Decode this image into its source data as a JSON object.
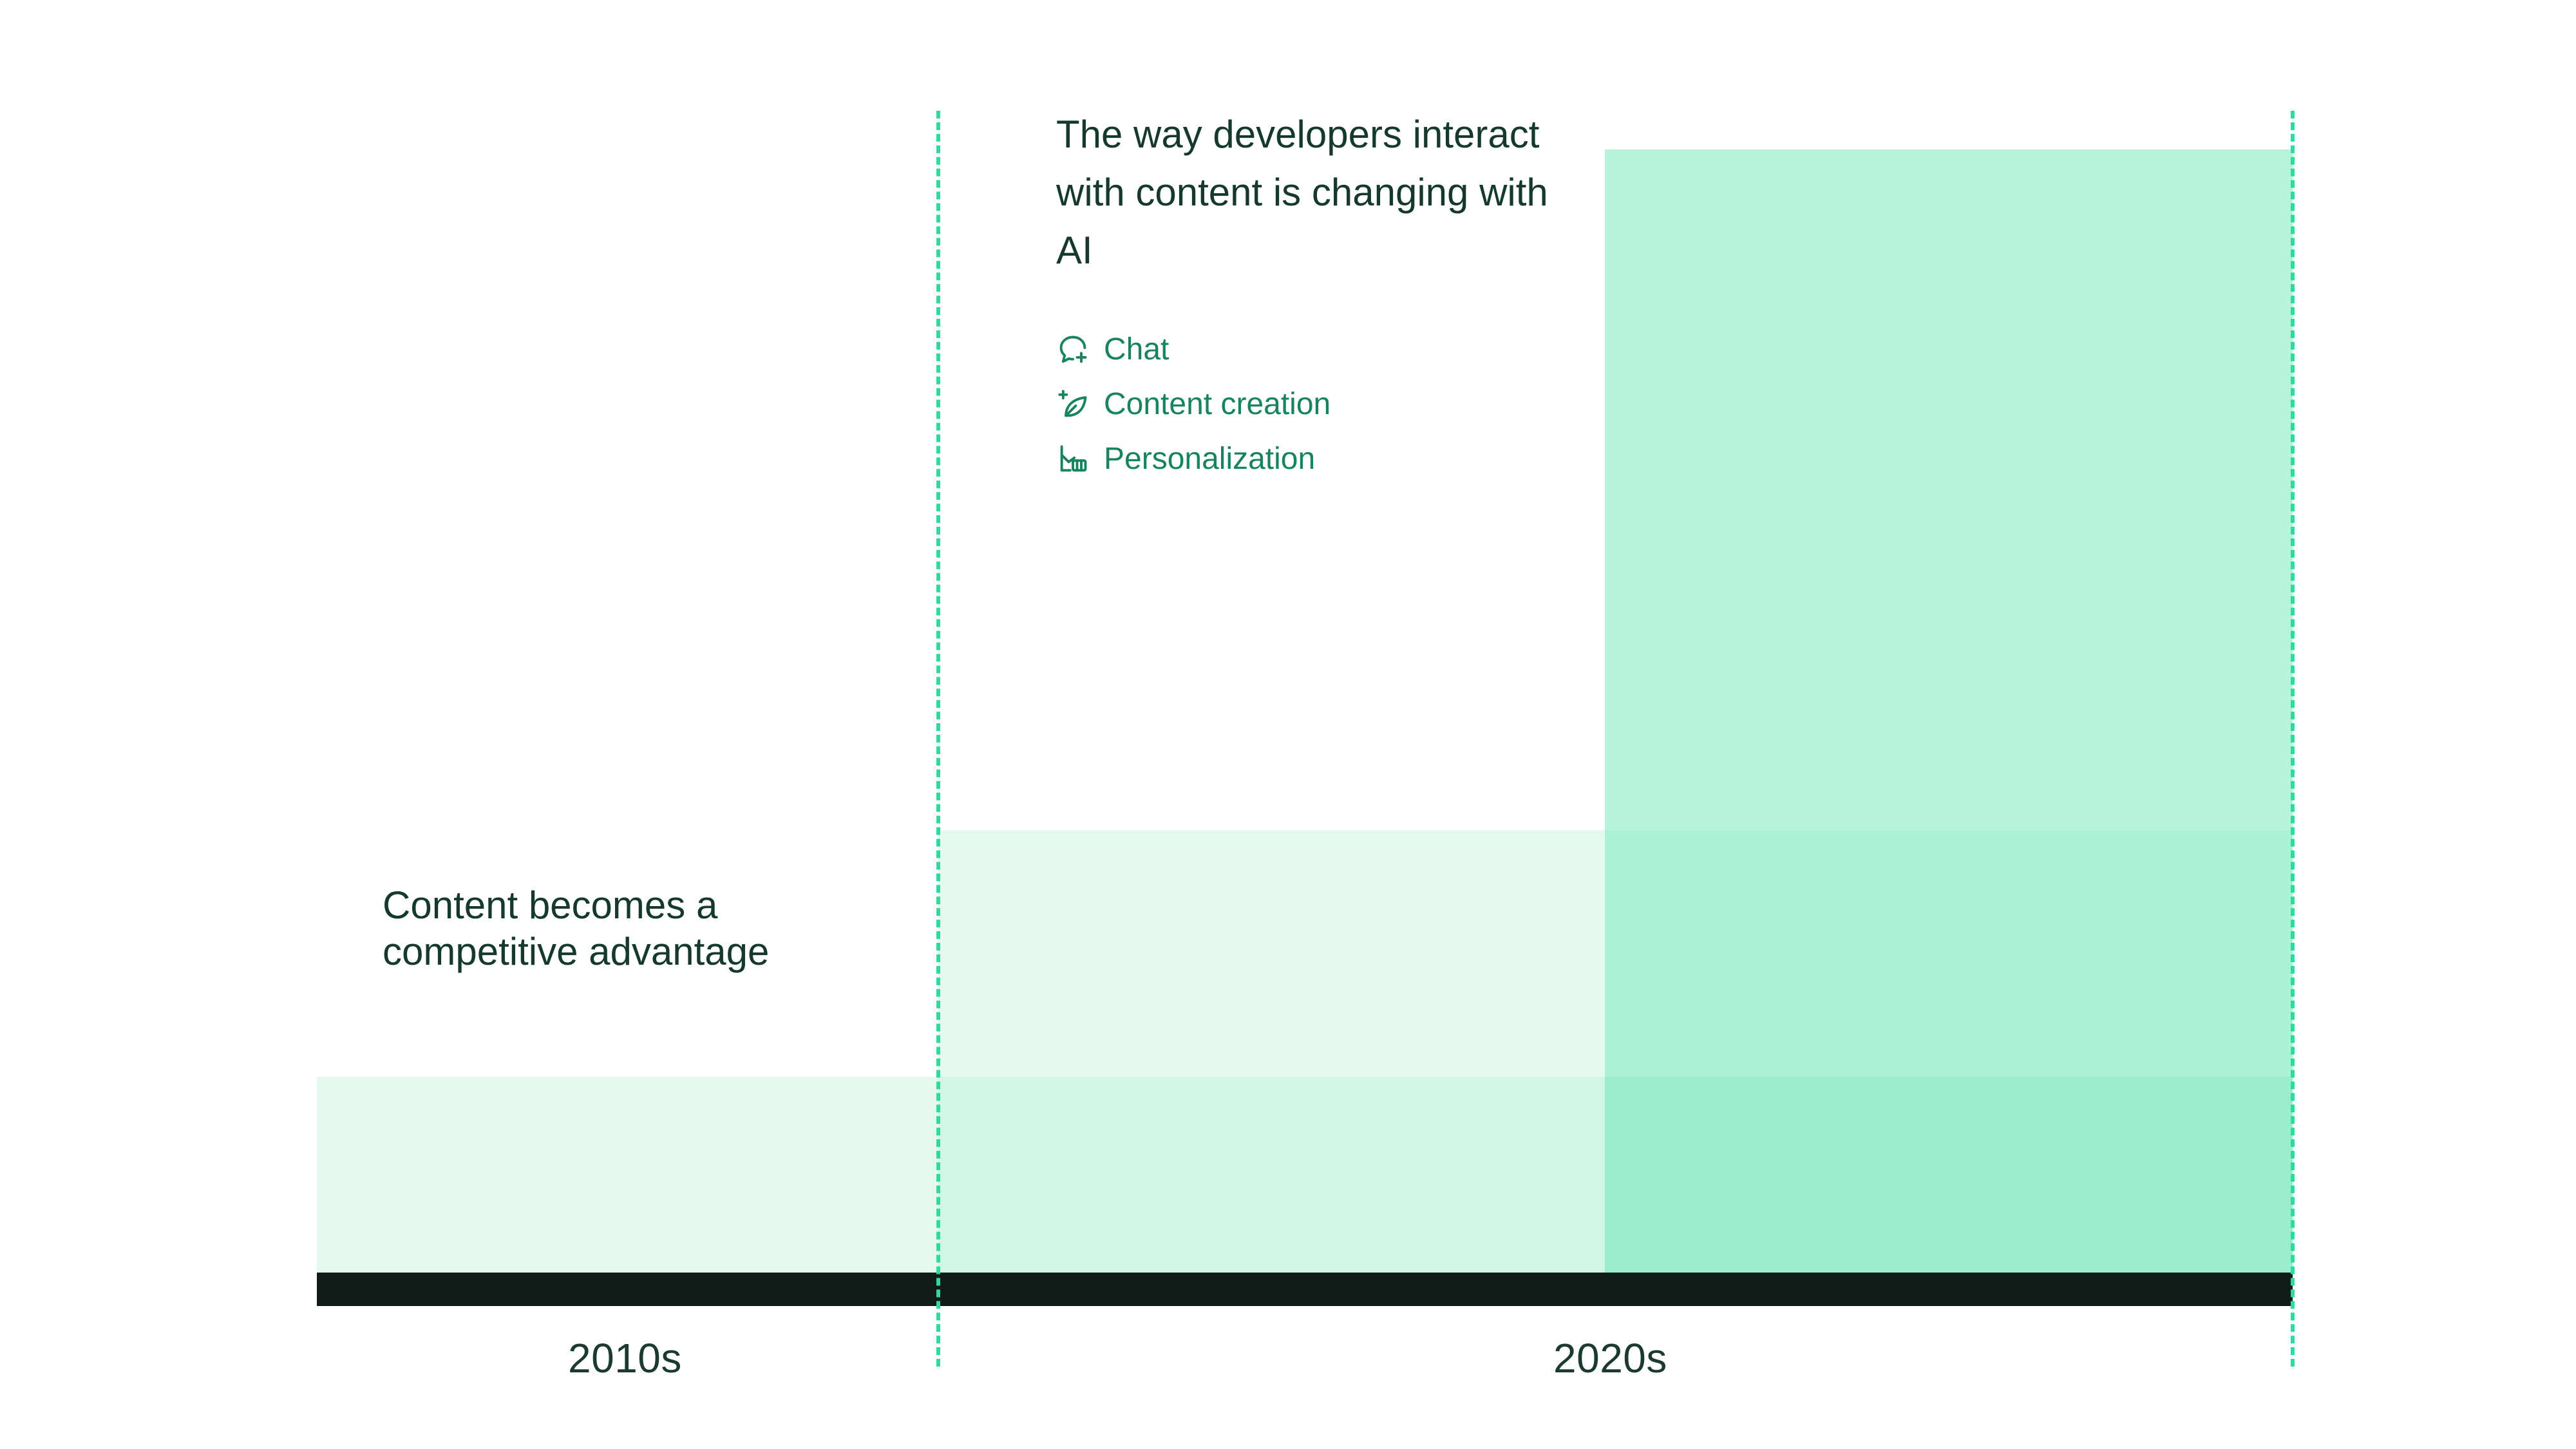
{
  "eras": [
    {
      "label": "2010s"
    },
    {
      "label": "2020s"
    }
  ],
  "left_caption": "Content becomes a competitive advantage",
  "right_heading": "The way developers interact with content is changing with AI",
  "features": [
    {
      "label": "Chat",
      "icon": "chat-bubble-sparkle-icon"
    },
    {
      "label": "Content creation",
      "icon": "leaf-sparkle-icon"
    },
    {
      "label": "Personalization",
      "icon": "personalization-icon"
    }
  ],
  "colors": {
    "accent_dashed": "#2ddc9c",
    "axis": "#111c18",
    "text_dark": "#16392d",
    "text_accent": "#17845d",
    "fill_light": "#e6f9f1",
    "fill_mid": "#d1f5e7",
    "fill_tall": "#b8f3de"
  }
}
